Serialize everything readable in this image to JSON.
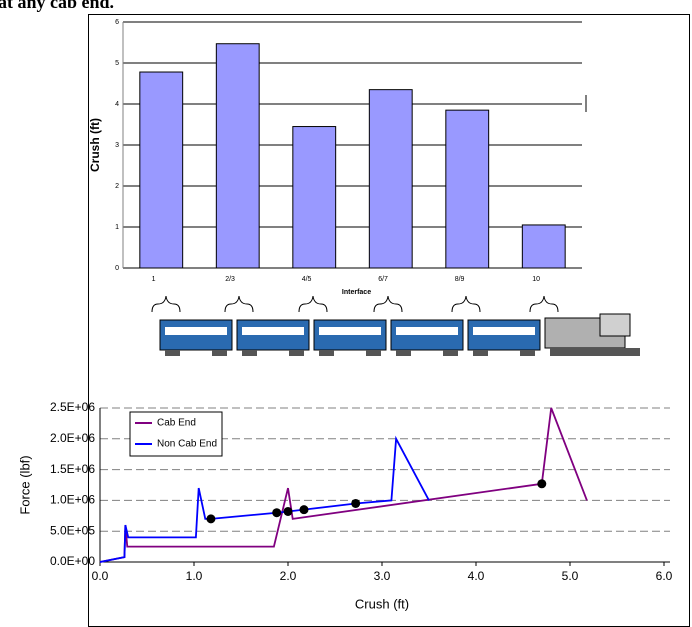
{
  "text": "at any cab end.",
  "chart_data": [
    {
      "type": "bar",
      "ylabel": "Crush (ft)",
      "xlabel": "Interface",
      "categories": [
        "1",
        "2/3",
        "4/5",
        "6/7",
        "8/9",
        "10"
      ],
      "values": [
        4.78,
        5.47,
        3.45,
        4.35,
        3.85,
        1.05
      ],
      "color": "#9999ff",
      "ylim": [
        0,
        6
      ],
      "yticks": [
        0,
        1,
        2,
        3,
        4,
        5,
        6
      ],
      "grid": true
    },
    {
      "type": "line",
      "ylabel": "Force (lbf)",
      "xlabel": "Crush (ft)",
      "xlim": [
        0,
        6
      ],
      "xticks": [
        {
          "value": 0,
          "label": "0.0"
        },
        {
          "value": 1,
          "label": "1.0"
        },
        {
          "value": 2,
          "label": "2.0"
        },
        {
          "value": 3,
          "label": "3.0"
        },
        {
          "value": 4,
          "label": "4.0"
        },
        {
          "value": 5,
          "label": "5.0"
        },
        {
          "value": 6,
          "label": "6.0"
        }
      ],
      "ylim": [
        0,
        2500000
      ],
      "yticks": [
        {
          "value": 0,
          "label": "0.0E+00"
        },
        {
          "value": 500000,
          "label": "5.0E+05"
        },
        {
          "value": 1000000,
          "label": "1.0E+06"
        },
        {
          "value": 1500000,
          "label": "1.5E+06"
        },
        {
          "value": 2000000,
          "label": "2.0E+06"
        },
        {
          "value": 2500000,
          "label": "2.5E+06"
        }
      ],
      "grid": true,
      "legend": "top-left",
      "series": [
        {
          "name": "Cab End",
          "color": "#800080",
          "x": [
            0,
            0.26,
            0.27,
            0.29,
            1.85,
            2.0,
            2.05,
            4.7,
            4.8,
            5.18
          ],
          "values": [
            0,
            80000,
            600000,
            250000,
            250000,
            1200000,
            700000,
            1270000,
            2500000,
            1000000
          ]
        },
        {
          "name": "Non Cab End",
          "color": "#0000ff",
          "x": [
            0,
            0.26,
            0.27,
            0.3,
            1.02,
            1.05,
            1.12,
            1.18,
            1.88,
            2.0,
            2.17,
            2.72,
            3.1,
            3.15,
            3.5
          ],
          "values": [
            0,
            80000,
            600000,
            400000,
            400000,
            1200000,
            700000,
            700000,
            800000,
            820000,
            850000,
            950000,
            1000000,
            2000000,
            1000000
          ]
        }
      ],
      "markers": {
        "color": "#000000",
        "x": [
          1.18,
          1.88,
          2.0,
          2.17,
          2.72,
          4.7
        ],
        "values": [
          700000,
          800000,
          820000,
          850000,
          950000,
          1270000
        ]
      }
    }
  ]
}
